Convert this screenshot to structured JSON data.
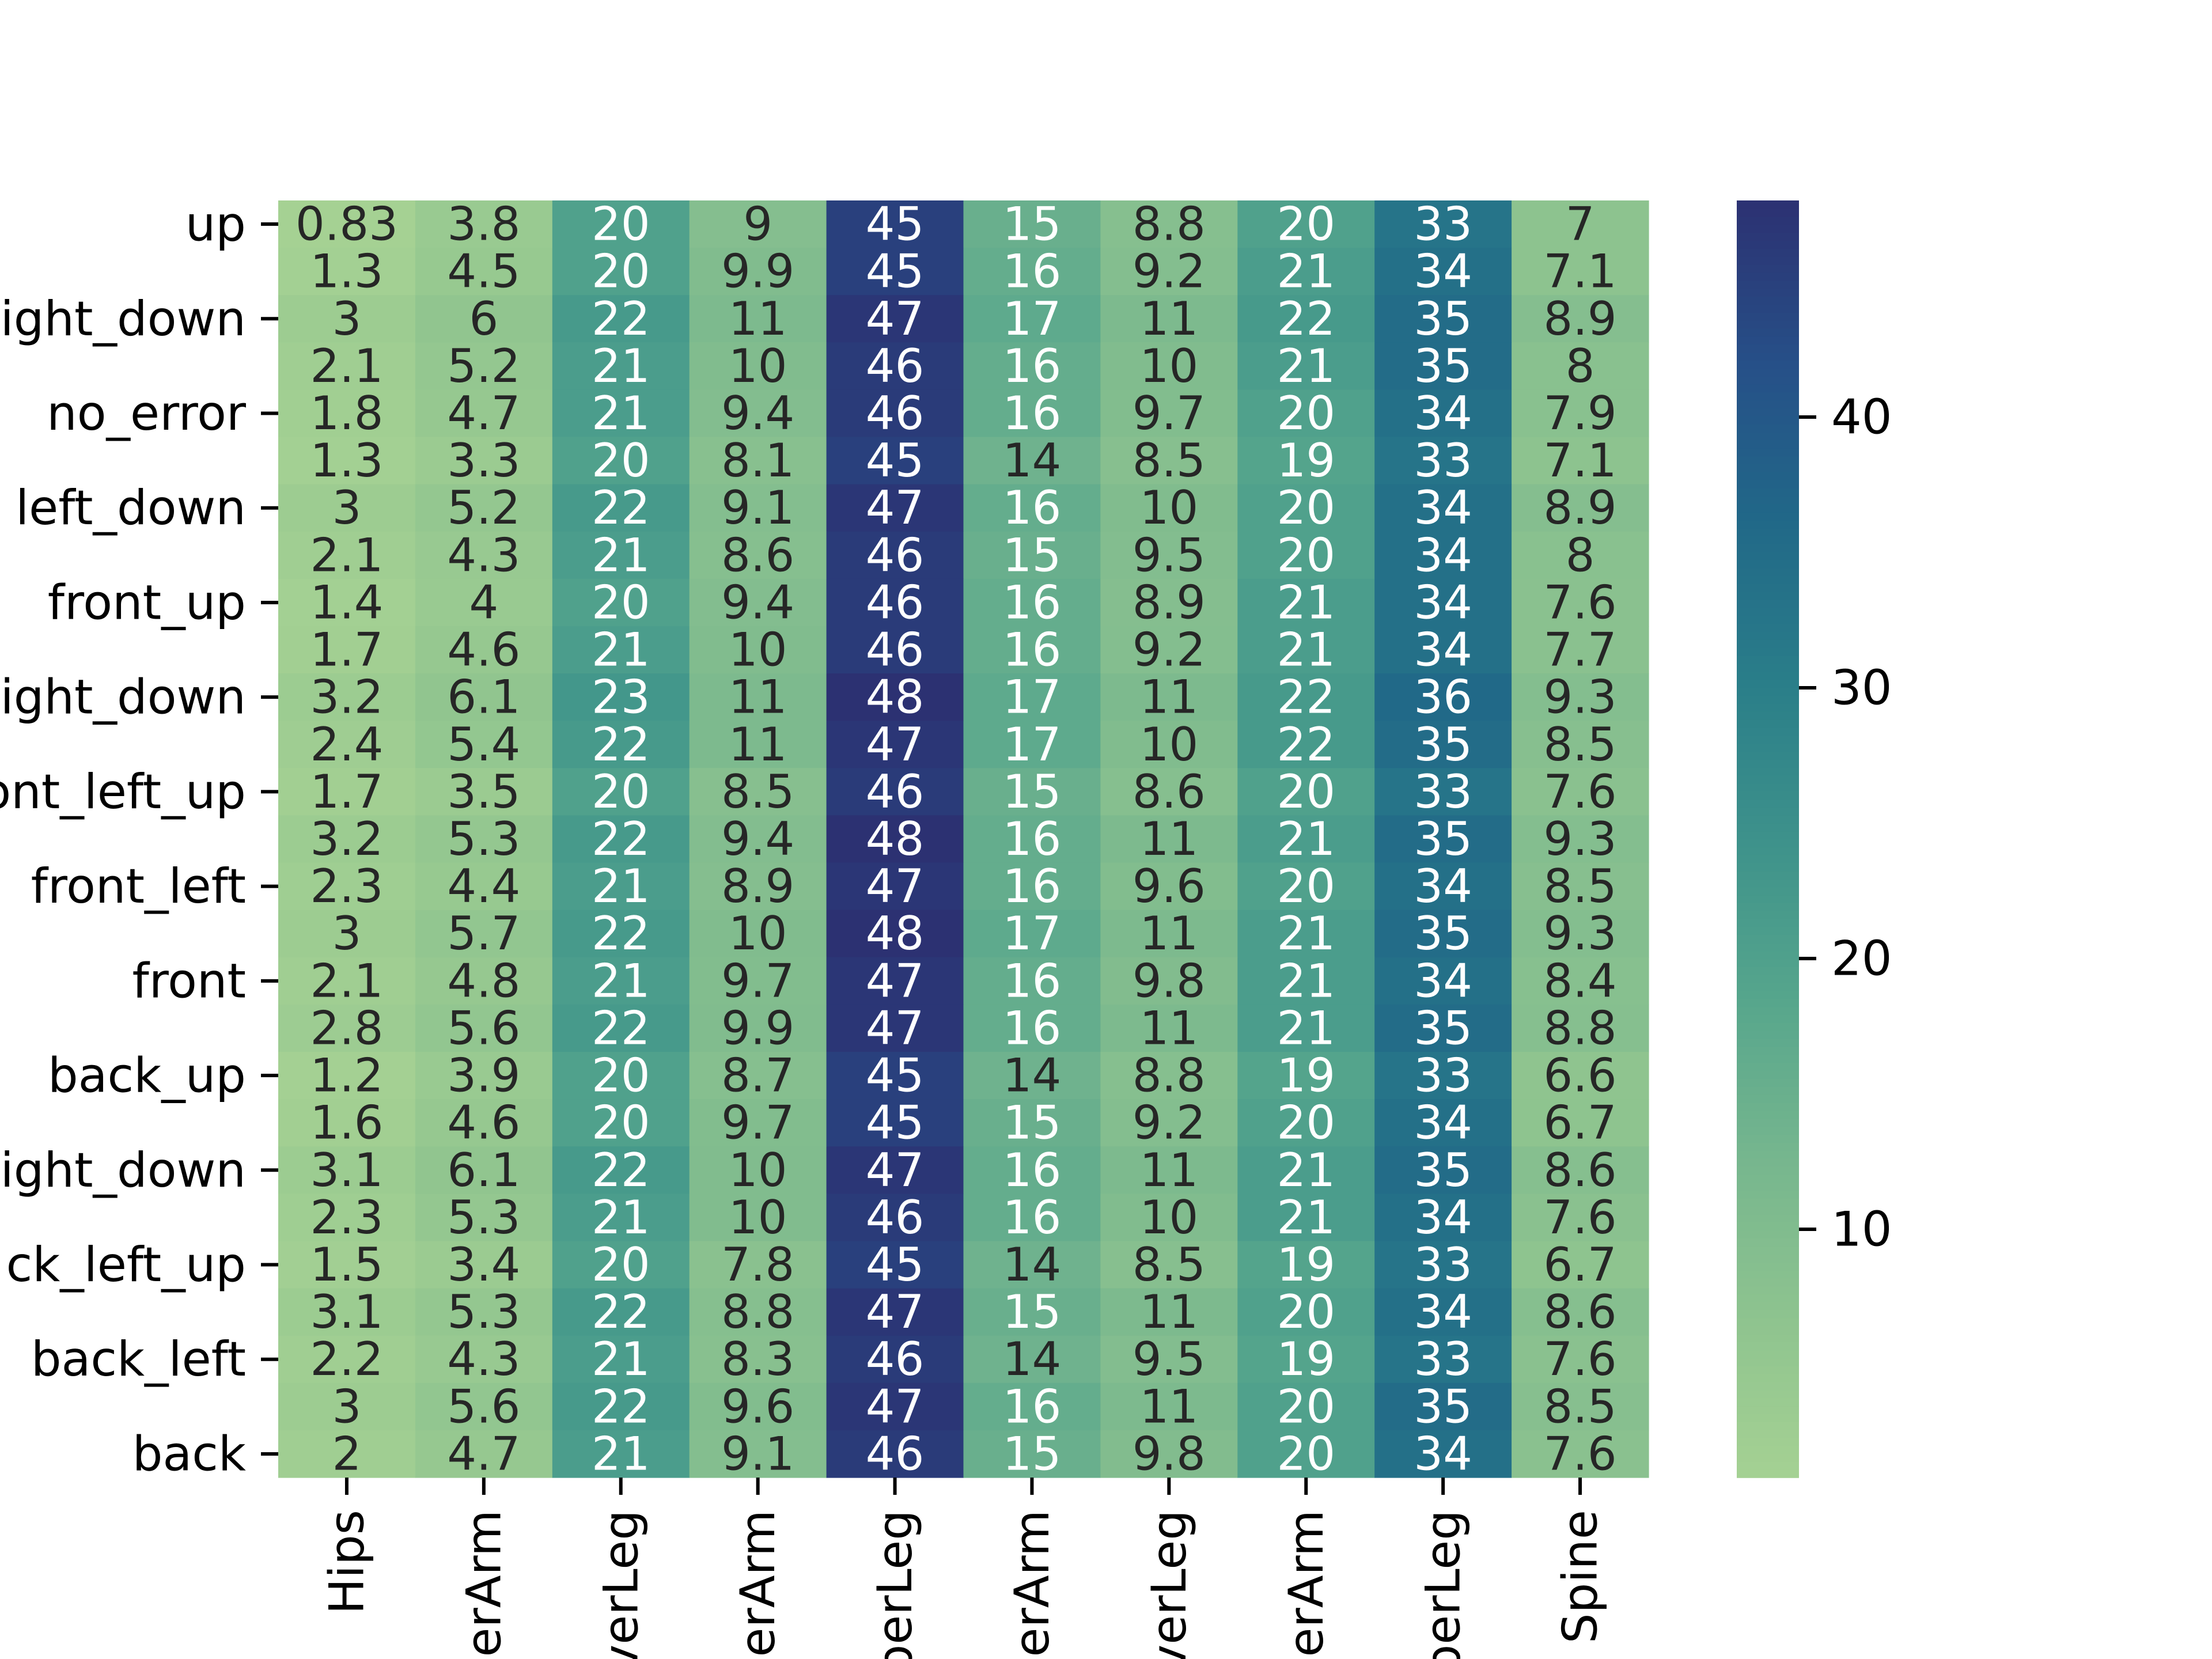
{
  "chart_data": {
    "type": "heatmap",
    "title": "",
    "xlabel": "",
    "ylabel": "",
    "columns": [
      "Hips",
      "perArm",
      "verLeg",
      "erArm",
      "perLeg",
      "erArm",
      "verLeg",
      "erArm",
      "perLeg",
      "Spine"
    ],
    "row_tick_labels": [
      "up",
      "ight_down",
      "no_error",
      "left_down",
      "front_up",
      "ight_down",
      "ont_left_up",
      "front_left",
      "front",
      "back_up",
      "ight_down",
      "ck_left_up",
      "back_left",
      "back"
    ],
    "rows": 27,
    "values": [
      [
        "0.83",
        "3.8",
        "20",
        "9",
        "45",
        "15",
        "8.8",
        "20",
        "33",
        "7"
      ],
      [
        "1.3",
        "4.5",
        "20",
        "9.9",
        "45",
        "16",
        "9.2",
        "21",
        "34",
        "7.1"
      ],
      [
        "3",
        "6",
        "22",
        "11",
        "47",
        "17",
        "11",
        "22",
        "35",
        "8.9"
      ],
      [
        "2.1",
        "5.2",
        "21",
        "10",
        "46",
        "16",
        "10",
        "21",
        "35",
        "8"
      ],
      [
        "1.8",
        "4.7",
        "21",
        "9.4",
        "46",
        "16",
        "9.7",
        "20",
        "34",
        "7.9"
      ],
      [
        "1.3",
        "3.3",
        "20",
        "8.1",
        "45",
        "14",
        "8.5",
        "19",
        "33",
        "7.1"
      ],
      [
        "3",
        "5.2",
        "22",
        "9.1",
        "47",
        "16",
        "10",
        "20",
        "34",
        "8.9"
      ],
      [
        "2.1",
        "4.3",
        "21",
        "8.6",
        "46",
        "15",
        "9.5",
        "20",
        "34",
        "8"
      ],
      [
        "1.4",
        "4",
        "20",
        "9.4",
        "46",
        "16",
        "8.9",
        "21",
        "34",
        "7.6"
      ],
      [
        "1.7",
        "4.6",
        "21",
        "10",
        "46",
        "16",
        "9.2",
        "21",
        "34",
        "7.7"
      ],
      [
        "3.2",
        "6.1",
        "23",
        "11",
        "48",
        "17",
        "11",
        "22",
        "36",
        "9.3"
      ],
      [
        "2.4",
        "5.4",
        "22",
        "11",
        "47",
        "17",
        "10",
        "22",
        "35",
        "8.5"
      ],
      [
        "1.7",
        "3.5",
        "20",
        "8.5",
        "46",
        "15",
        "8.6",
        "20",
        "33",
        "7.6"
      ],
      [
        "3.2",
        "5.3",
        "22",
        "9.4",
        "48",
        "16",
        "11",
        "21",
        "35",
        "9.3"
      ],
      [
        "2.3",
        "4.4",
        "21",
        "8.9",
        "47",
        "16",
        "9.6",
        "20",
        "34",
        "8.5"
      ],
      [
        "3",
        "5.7",
        "22",
        "10",
        "48",
        "17",
        "11",
        "21",
        "35",
        "9.3"
      ],
      [
        "2.1",
        "4.8",
        "21",
        "9.7",
        "47",
        "16",
        "9.8",
        "21",
        "34",
        "8.4"
      ],
      [
        "2.8",
        "5.6",
        "22",
        "9.9",
        "47",
        "16",
        "11",
        "21",
        "35",
        "8.8"
      ],
      [
        "1.2",
        "3.9",
        "20",
        "8.7",
        "45",
        "14",
        "8.8",
        "19",
        "33",
        "6.6"
      ],
      [
        "1.6",
        "4.6",
        "20",
        "9.7",
        "45",
        "15",
        "9.2",
        "20",
        "34",
        "6.7"
      ],
      [
        "3.1",
        "6.1",
        "22",
        "10",
        "47",
        "16",
        "11",
        "21",
        "35",
        "8.6"
      ],
      [
        "2.3",
        "5.3",
        "21",
        "10",
        "46",
        "16",
        "10",
        "21",
        "34",
        "7.6"
      ],
      [
        "1.5",
        "3.4",
        "20",
        "7.8",
        "45",
        "14",
        "8.5",
        "19",
        "33",
        "6.7"
      ],
      [
        "3.1",
        "5.3",
        "22",
        "8.8",
        "47",
        "15",
        "11",
        "20",
        "34",
        "8.6"
      ],
      [
        "2.2",
        "4.3",
        "21",
        "8.3",
        "46",
        "14",
        "9.5",
        "19",
        "33",
        "7.6"
      ],
      [
        "3",
        "5.6",
        "22",
        "9.6",
        "47",
        "16",
        "11",
        "20",
        "35",
        "8.5"
      ],
      [
        "2",
        "4.7",
        "21",
        "9.1",
        "46",
        "15",
        "9.8",
        "20",
        "34",
        "7.6"
      ]
    ],
    "colorbar": {
      "ticks": [
        "10",
        "20",
        "30",
        "40"
      ],
      "range": [
        0.83,
        48
      ],
      "colormap": "crest",
      "low_color": "#a5d193",
      "high_color": "#2c3172"
    },
    "annotation_text_dark": "#262626",
    "annotation_text_light": "#ffffff",
    "grid": false
  }
}
